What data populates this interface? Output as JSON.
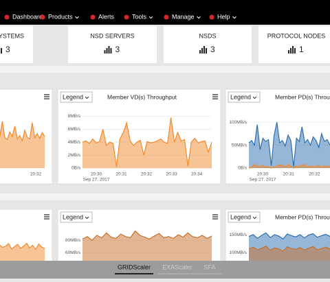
{
  "nav": {
    "items": [
      "Dashboard",
      "Products",
      "Alerts",
      "Tools",
      "Manage",
      "Help"
    ]
  },
  "summary": [
    {
      "label": "FILESYSTEMS",
      "count": 3
    },
    {
      "label": "NSD SERVERS",
      "count": 3
    },
    {
      "label": "NSDS",
      "count": 3
    },
    {
      "label": "PROTOCOL NODES",
      "count": 1
    }
  ],
  "panels": [
    {
      "ylim": [
        0,
        10
      ],
      "xticks": [
        "20:32"
      ],
      "series": [
        {
          "color": "#f08a2c",
          "values": [
            5,
            5.5,
            4.8,
            6,
            5.2,
            7.5,
            5,
            5.8,
            4.6,
            6.8,
            5.1,
            5.5,
            8,
            5.2,
            4.9,
            6.2,
            5.4,
            7.2,
            5,
            5.6,
            4.7,
            6.5,
            5.3,
            5,
            7.8,
            5.2,
            5.9,
            5.1,
            6.1,
            5.4
          ]
        }
      ]
    },
    {
      "legend": "Legend",
      "title": "Member VD(s) Throughput",
      "ylim": [
        0,
        9
      ],
      "yticks": [
        {
          "value": 0,
          "label": "0B/s"
        },
        {
          "value": 2,
          "label": "2MB/s"
        },
        {
          "value": 4,
          "label": "4MB/s"
        },
        {
          "value": 6,
          "label": "6MB/s"
        },
        {
          "value": 8,
          "label": "8MB/s"
        }
      ],
      "xticks": [
        "20:30",
        "20:31",
        "20:32",
        "20:33",
        "20:34"
      ],
      "date": "Sep 27, 2017",
      "series": [
        {
          "color": "#f08a2c",
          "values": [
            4,
            4.2,
            3.8,
            4.5,
            3.9,
            4.1,
            6,
            3.5,
            4,
            3.8,
            0.2,
            4.5,
            5.5,
            7,
            4.2,
            3.5,
            4,
            4.3,
            2,
            4.1,
            3.9,
            4,
            4.2,
            4.5,
            4,
            3.8,
            7.8,
            4,
            5.5,
            4.2,
            4.4,
            0.3,
            4,
            4.6,
            3.9,
            4.1,
            4.2,
            2.5,
            4
          ]
        }
      ]
    },
    {
      "legend": "Legend",
      "title": "Member PD(s) Throughput",
      "ylim": [
        0,
        127
      ],
      "yticks": [
        {
          "value": 0,
          "label": "0B/s"
        },
        {
          "value": 50,
          "label": "50MB/s"
        },
        {
          "value": 100,
          "label": "100MB/s"
        }
      ],
      "xticks": [
        "20:30",
        "20:31",
        "20:32"
      ],
      "date": "Sep 27, 2017",
      "series": [
        {
          "color": "#2e6fb0",
          "values": [
            55,
            60,
            50,
            95,
            40,
            65,
            58,
            62,
            5,
            70,
            100,
            55,
            60,
            48,
            72,
            60,
            3,
            65,
            58,
            90,
            55,
            62,
            50,
            68,
            60,
            45,
            75,
            58,
            62,
            50
          ]
        },
        {
          "color": "#f08a2c",
          "values": [
            0,
            2,
            8,
            5,
            3,
            6,
            2,
            4,
            0,
            3,
            5,
            7,
            6,
            2,
            8,
            4,
            0,
            5,
            3,
            6,
            8,
            2,
            5,
            3,
            4,
            6,
            2,
            5,
            3,
            4
          ]
        }
      ]
    },
    {
      "ylim": [
        0,
        10
      ],
      "series": [
        {
          "color": "#f08a2c",
          "values": [
            3,
            4,
            3.5,
            5,
            3.2,
            4.4,
            3.8,
            5.2,
            3.1,
            4.6,
            3.9,
            4.2,
            5,
            3.4,
            4.1,
            4.8,
            3.6,
            4.3,
            5.1,
            3.7,
            4.5,
            3.3,
            4.9,
            4,
            3.6
          ]
        }
      ]
    },
    {
      "legend": "Legend",
      "ylim": [
        47,
        119
      ],
      "yticks": [
        {
          "value": 60,
          "label": "60MB/s"
        },
        {
          "value": 80,
          "label": "80MB/s"
        }
      ],
      "series": [
        {
          "color": "#c7702a",
          "values": [
            82,
            86,
            80,
            88,
            84,
            92,
            85,
            83,
            90,
            86,
            84,
            95,
            88,
            85,
            82,
            87,
            91,
            84,
            86,
            83,
            89,
            85,
            92,
            86,
            84,
            88,
            83,
            87
          ]
        }
      ]
    },
    {
      "legend": "Legend",
      "title": "Member PD(s) Throughput",
      "ylim": [
        77,
        202
      ],
      "yticks": [
        {
          "value": 100,
          "label": "100MB/s"
        },
        {
          "value": 150,
          "label": "150MB/s"
        }
      ],
      "series": [
        {
          "color": "#2e6fb0",
          "values": [
            145,
            150,
            140,
            148,
            155,
            142,
            150,
            146,
            138,
            152,
            147,
            144,
            150,
            141,
            149,
            153,
            143,
            147,
            151,
            145
          ]
        },
        {
          "color": "#c7702a",
          "values": [
            110,
            115,
            108,
            112,
            118,
            106,
            113,
            110,
            104,
            116,
            111,
            109,
            114,
            107,
            112,
            117,
            108,
            111,
            115,
            110
          ]
        }
      ]
    }
  ],
  "tabs": [
    "GRIDScaler",
    "EXAScaler",
    "SFA"
  ]
}
